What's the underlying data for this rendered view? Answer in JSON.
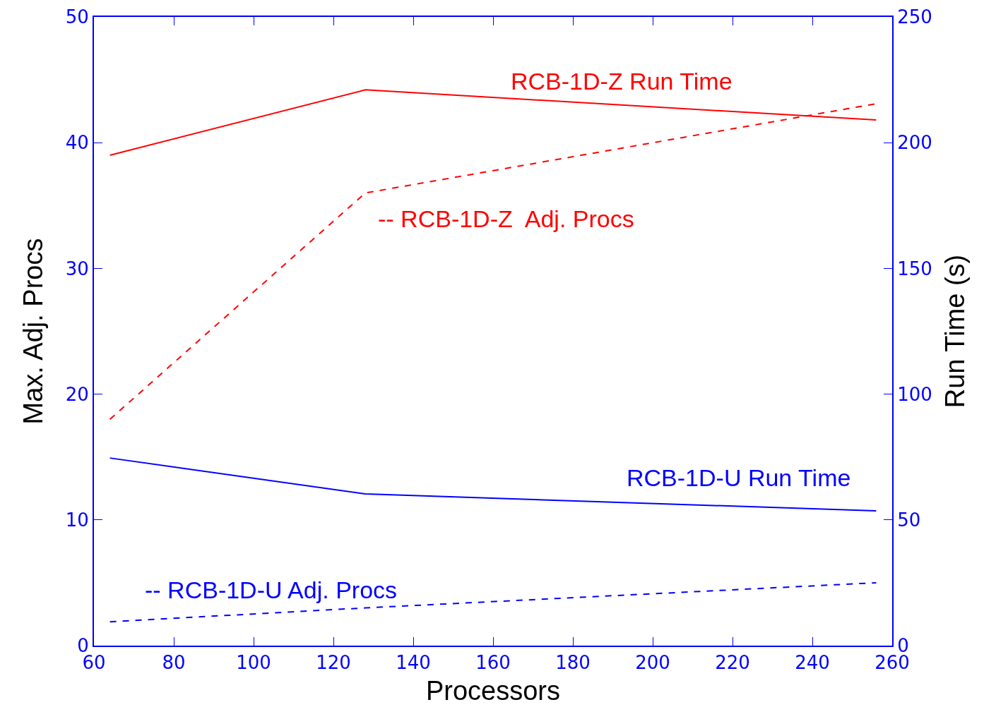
{
  "chart_data": {
    "type": "line",
    "xlabel": "Processors",
    "ylabel": "Max. Adj. Procs",
    "y2label": "Run Time (s)",
    "x": [
      64,
      128,
      256
    ],
    "series": [
      {
        "name": "RCB-1D-Z Run Time",
        "color": "#ff0000",
        "axis": "y2",
        "line_style": "solid",
        "values": [
          195,
          221,
          209
        ]
      },
      {
        "name": "-- RCB-1D-Z  Adj. Procs",
        "color": "#ff0000",
        "line_style": "dashed",
        "values": [
          18,
          36,
          43.1
        ]
      },
      {
        "name": "RCB-1D-U Run Time",
        "color": "#0000ff",
        "axis": "y2",
        "line_style": "solid",
        "values": [
          74.6,
          60.3,
          53.6
        ]
      },
      {
        "name": "-- RCB-1D-U Adj. Procs",
        "color": "#0000ff",
        "line_style": "dashed",
        "values": [
          1.9,
          3.0,
          5.0
        ]
      }
    ],
    "xlim": [
      60,
      260
    ],
    "xticks": [
      60,
      80,
      100,
      120,
      140,
      160,
      180,
      200,
      220,
      240,
      260
    ],
    "ylim": [
      0,
      50
    ],
    "yticks": [
      0,
      10,
      20,
      30,
      40,
      50
    ],
    "y2lim": [
      0,
      250
    ],
    "y2ticks": [
      0,
      50,
      100,
      150,
      200,
      250
    ],
    "grid": false,
    "legend": false,
    "marker": "none"
  }
}
